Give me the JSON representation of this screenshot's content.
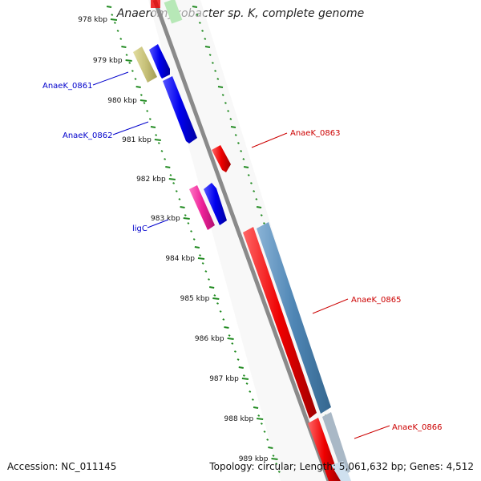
{
  "title": "Anaeromyxobacter sp. K, complete genome",
  "footer": {
    "accession": "Accession: NC_011145",
    "stats": "Topology: circular; Length: 5,061,632 bp; Genes: 4,512"
  },
  "ruler": {
    "unit": "kbp",
    "ticks": [
      "978 kbp",
      "979 kbp",
      "980 kbp",
      "981 kbp",
      "982 kbp",
      "983 kbp",
      "984 kbp",
      "985 kbp",
      "986 kbp",
      "987 kbp",
      "988 kbp",
      "989 kbp"
    ]
  },
  "genes": [
    {
      "id": "gene-anaek-0861",
      "label": "AnaeK_0861",
      "color": "#0000ee",
      "label_color": "#0000cc"
    },
    {
      "id": "gene-anaek-0862",
      "label": "AnaeK_0862",
      "color": "#0000ee",
      "label_color": "#0000cc"
    },
    {
      "id": "gene-ligc",
      "label": "ligC",
      "color": "#0000ee",
      "label_color": "#0000cc"
    },
    {
      "id": "gene-anaek-0863",
      "label": "AnaeK_0863",
      "color": "#ee0000",
      "label_color": "#cc0000"
    },
    {
      "id": "gene-anaek-0865",
      "label": "AnaeK_0865",
      "color": "#ee0000",
      "label_color": "#cc0000"
    },
    {
      "id": "gene-anaek-0866",
      "label": "AnaeK_0866",
      "color": "#ee0000",
      "label_color": "#cc0000"
    }
  ],
  "colors": {
    "tick_green": "#228b22",
    "backbone": "#888888",
    "olive_feature": "#c8c27a",
    "pink_feature": "#ee2299",
    "steelblue_feature": "#4f86b5",
    "light_green_feature": "#b7e8b7"
  }
}
